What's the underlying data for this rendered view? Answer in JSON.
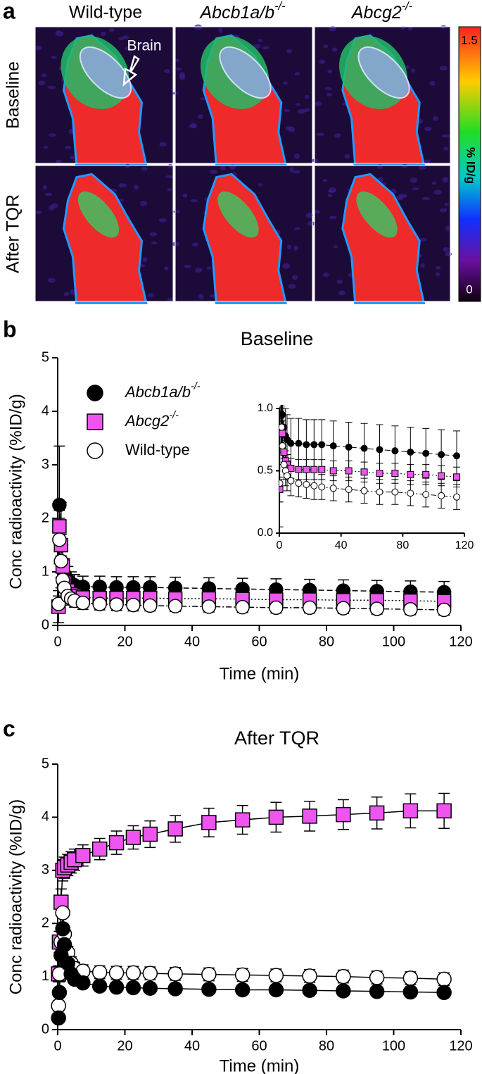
{
  "panel_a": {
    "label": "a",
    "columns": [
      "Wild-type",
      "Abcb1a/b-/-",
      "Abcg2-/-"
    ],
    "rows": [
      "Baseline",
      "After TQR"
    ],
    "annotation": "Brain",
    "colorbar": {
      "label": "% ID/g",
      "max": 1.5,
      "min": 0
    }
  },
  "chart_data": [
    {
      "type": "line",
      "panel_label": "b",
      "title": "Baseline",
      "x_label": "Time (min)",
      "y_label": "Conc radioactivity (%ID/g)",
      "x": [
        0.25,
        0.5,
        1,
        1.5,
        2,
        3,
        4,
        5,
        7.5,
        12.5,
        17.5,
        22.5,
        27.5,
        35,
        45,
        55,
        65,
        75,
        85,
        95,
        105,
        115
      ],
      "xlim": [
        0,
        120
      ],
      "xticks": [
        0,
        20,
        40,
        60,
        80,
        100,
        120
      ],
      "ylim": [
        0,
        5
      ],
      "yticks": [
        0,
        1,
        2,
        3,
        4,
        5
      ],
      "legend": true,
      "series": [
        {
          "name": "Abcb1a/b-/-",
          "color": "#000000",
          "marker": "circle",
          "line_style": "dashed",
          "values": [
            0.35,
            2.25,
            1.5,
            1.1,
            0.95,
            0.85,
            0.78,
            0.75,
            0.72,
            0.72,
            0.71,
            0.71,
            0.71,
            0.7,
            0.69,
            0.68,
            0.67,
            0.66,
            0.65,
            0.64,
            0.63,
            0.62
          ],
          "errors": [
            0.3,
            1.1,
            0.8,
            0.4,
            0.3,
            0.25,
            0.22,
            0.2,
            0.2,
            0.2,
            0.2,
            0.2,
            0.2,
            0.2,
            0.2,
            0.2,
            0.2,
            0.2,
            0.2,
            0.2,
            0.2,
            0.2
          ]
        },
        {
          "name": "Abcg2-/-",
          "color": "#ee55ee",
          "marker": "square",
          "line_style": "dotted",
          "values": [
            0.35,
            1.85,
            1.5,
            1.1,
            0.8,
            0.65,
            0.58,
            0.55,
            0.52,
            0.51,
            0.51,
            0.51,
            0.51,
            0.5,
            0.5,
            0.49,
            0.48,
            0.48,
            0.47,
            0.47,
            0.46,
            0.45
          ],
          "errors": [
            0.1,
            0.3,
            0.2,
            0.15,
            0.1,
            0.08,
            0.08,
            0.08,
            0.08,
            0.08,
            0.08,
            0.08,
            0.08,
            0.08,
            0.08,
            0.08,
            0.08,
            0.08,
            0.08,
            0.08,
            0.08,
            0.08
          ]
        },
        {
          "name": "Wild-type",
          "color": "#ffffff",
          "marker": "circle",
          "line_style": "dashdot",
          "values": [
            0.4,
            1.6,
            1.2,
            0.85,
            0.7,
            0.55,
            0.5,
            0.46,
            0.42,
            0.4,
            0.39,
            0.38,
            0.37,
            0.36,
            0.35,
            0.34,
            0.33,
            0.33,
            0.32,
            0.31,
            0.3,
            0.29
          ],
          "errors": [
            0.15,
            0.4,
            0.3,
            0.2,
            0.15,
            0.12,
            0.12,
            0.12,
            0.12,
            0.11,
            0.11,
            0.11,
            0.1,
            0.1,
            0.1,
            0.1,
            0.1,
            0.1,
            0.1,
            0.1,
            0.1,
            0.1
          ]
        }
      ],
      "inset": {
        "xlim": [
          0,
          120
        ],
        "xticks": [
          0,
          40,
          80,
          120
        ],
        "ylim": [
          0,
          1
        ],
        "yticks": [
          {
            "value": 0,
            "label": "0.0"
          },
          {
            "value": 0.5,
            "label": "0.5"
          },
          {
            "value": 1,
            "label": "1.0"
          }
        ]
      }
    },
    {
      "type": "line",
      "panel_label": "c",
      "title": "After TQR",
      "x_label": "Time (min)",
      "y_label": "Conc radioactivity (%ID/g)",
      "x": [
        0.25,
        0.5,
        1,
        1.5,
        2,
        3,
        4,
        5,
        7.5,
        12.5,
        17.5,
        22.5,
        27.5,
        35,
        45,
        55,
        65,
        75,
        85,
        95,
        105,
        115
      ],
      "xlim": [
        0,
        120
      ],
      "xticks": [
        0,
        20,
        40,
        60,
        80,
        100,
        120
      ],
      "ylim": [
        0,
        5
      ],
      "yticks": [
        0,
        1,
        2,
        3,
        4,
        5
      ],
      "legend": false,
      "series": [
        {
          "color": "#ee55ee",
          "marker": "square",
          "line_style": "solid",
          "values": [
            1.05,
            1.65,
            2.4,
            3.0,
            3.05,
            3.1,
            3.15,
            3.2,
            3.28,
            3.4,
            3.52,
            3.62,
            3.68,
            3.78,
            3.9,
            3.95,
            4.0,
            4.02,
            4.05,
            4.08,
            4.12,
            4.12
          ],
          "errors": [
            0.15,
            0.2,
            0.25,
            0.2,
            0.2,
            0.2,
            0.2,
            0.2,
            0.2,
            0.2,
            0.22,
            0.22,
            0.25,
            0.25,
            0.27,
            0.27,
            0.28,
            0.28,
            0.28,
            0.3,
            0.32,
            0.33
          ]
        },
        {
          "color": "#ffffff",
          "marker": "circle",
          "line_style": "solid",
          "values": [
            0.45,
            1.05,
            1.65,
            2.2,
            1.8,
            1.45,
            1.25,
            1.15,
            1.1,
            1.08,
            1.07,
            1.07,
            1.06,
            1.05,
            1.04,
            1.03,
            1.02,
            1.01,
            1.0,
            0.98,
            0.97,
            0.95
          ],
          "errors": [
            0.1,
            0.15,
            0.2,
            0.2,
            0.15,
            0.12,
            0.12,
            0.12,
            0.12,
            0.12,
            0.12,
            0.12,
            0.12,
            0.12,
            0.12,
            0.12,
            0.12,
            0.12,
            0.12,
            0.12,
            0.12,
            0.12
          ]
        },
        {
          "color": "#000000",
          "marker": "circle",
          "line_style": "solid",
          "values": [
            0.22,
            0.7,
            1.4,
            1.9,
            1.6,
            1.25,
            1.05,
            0.95,
            0.88,
            0.82,
            0.8,
            0.79,
            0.78,
            0.77,
            0.76,
            0.75,
            0.75,
            0.74,
            0.73,
            0.72,
            0.71,
            0.7
          ],
          "errors": [
            0.05,
            0.08,
            0.1,
            0.1,
            0.08,
            0.06,
            0.05,
            0.05,
            0.05,
            0.05,
            0.05,
            0.05,
            0.05,
            0.05,
            0.05,
            0.05,
            0.05,
            0.05,
            0.05,
            0.05,
            0.05,
            0.05
          ]
        }
      ]
    }
  ]
}
